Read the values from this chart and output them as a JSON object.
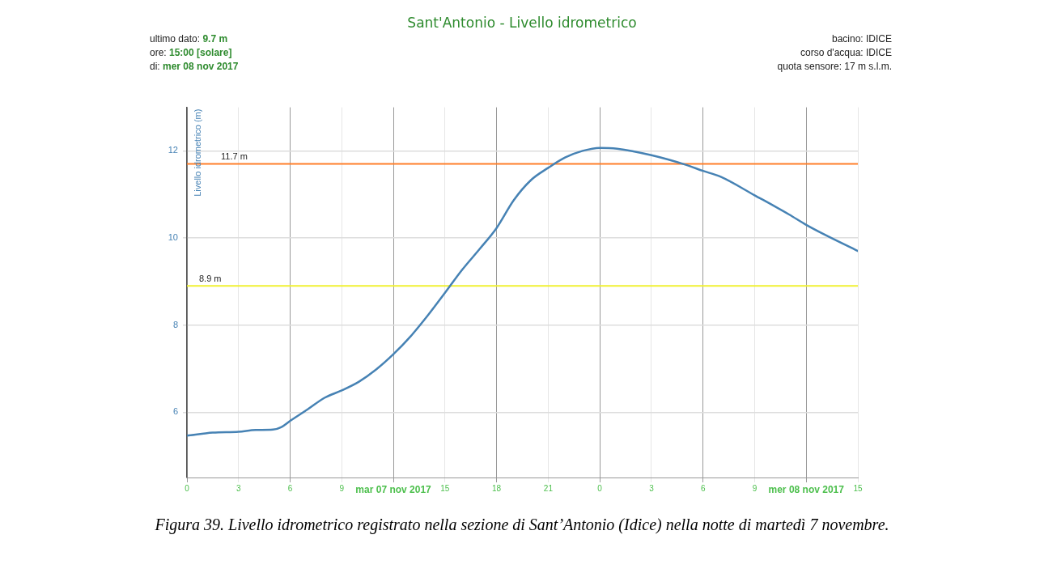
{
  "chart_data": {
    "type": "line",
    "title": "Sant'Antonio - Livello idrometrico",
    "ylabel": "Livello idrometrico (m)",
    "annotations": [
      "ultimo dato: 9.7 m",
      "ore: 15:00 [solare]",
      "di: mer 08 nov 2017",
      "bacino: IDICE",
      "corso d'acqua: IDICE",
      "quota sensore: 17 m s.l.m.",
      "Figura 39. Livello idrometrico registrato nella sezione di Sant’Antonio (Idice) nella notte di martedì 7 novembre."
    ],
    "x": [
      "2017-11-07T00:00",
      "2017-11-07T01:30",
      "2017-11-07T03:00",
      "2017-11-07T04:00",
      "2017-11-07T05:00",
      "2017-11-07T05:30",
      "2017-11-07T06:00",
      "2017-11-07T07:00",
      "2017-11-07T08:00",
      "2017-11-07T09:00",
      "2017-11-07T10:00",
      "2017-11-07T11:00",
      "2017-11-07T12:00",
      "2017-11-07T13:00",
      "2017-11-07T14:00",
      "2017-11-07T15:00",
      "2017-11-07T16:00",
      "2017-11-07T17:00",
      "2017-11-07T18:00",
      "2017-11-07T19:00",
      "2017-11-07T20:00",
      "2017-11-07T21:00",
      "2017-11-07T22:00",
      "2017-11-07T23:00",
      "2017-11-08T00:00",
      "2017-11-08T01:00",
      "2017-11-08T03:00",
      "2017-11-08T05:00",
      "2017-11-08T06:00",
      "2017-11-08T07:00",
      "2017-11-08T09:00",
      "2017-11-08T11:00",
      "2017-11-08T12:00",
      "2017-11-08T13:00",
      "2017-11-08T15:00"
    ],
    "series": [
      {
        "color": "#4682b4",
        "values": [
          5.46,
          5.53,
          5.55,
          5.59,
          5.6,
          5.66,
          5.8,
          6.06,
          6.33,
          6.5,
          6.7,
          6.98,
          7.33,
          7.74,
          8.22,
          8.74,
          9.27,
          9.74,
          10.23,
          10.87,
          11.33,
          11.61,
          11.85,
          12.0,
          12.07,
          12.05,
          11.9,
          11.68,
          11.54,
          11.41,
          10.98,
          10.54,
          10.3,
          10.09,
          9.7
        ]
      }
    ],
    "xlim": [
      "2017-11-07T00:00",
      "2017-11-08T15:00"
    ],
    "xticks": [
      {
        "value": "2017-11-07T00:00",
        "label": "0"
      },
      {
        "value": "2017-11-07T03:00",
        "label": "3"
      },
      {
        "value": "2017-11-07T06:00",
        "label": "6"
      },
      {
        "value": "2017-11-07T09:00",
        "label": "9"
      },
      {
        "value": "2017-11-07T12:00",
        "label": "mar 07 nov 2017"
      },
      {
        "value": "2017-11-07T15:00",
        "label": "15"
      },
      {
        "value": "2017-11-07T18:00",
        "label": "18"
      },
      {
        "value": "2017-11-07T21:00",
        "label": "21"
      },
      {
        "value": "2017-11-08T00:00",
        "label": "0"
      },
      {
        "value": "2017-11-08T03:00",
        "label": "3"
      },
      {
        "value": "2017-11-08T06:00",
        "label": "6"
      },
      {
        "value": "2017-11-08T09:00",
        "label": "9"
      },
      {
        "value": "2017-11-08T12:00",
        "label": "mer 08 nov 2017"
      },
      {
        "value": "2017-11-08T15:00",
        "label": "15"
      }
    ],
    "ylim": [
      4.5,
      13
    ],
    "yticks": [
      6,
      8,
      10,
      12
    ],
    "ref_lines": [
      {
        "axis": "y",
        "value": 11.7,
        "label": "11.7 m",
        "color": "#ff7f2a"
      },
      {
        "axis": "y",
        "value": 8.9,
        "label": "8.9 m",
        "color": "#f0f032"
      }
    ],
    "grid": true,
    "legend": false,
    "marker": "none",
    "line_style": "solid"
  }
}
